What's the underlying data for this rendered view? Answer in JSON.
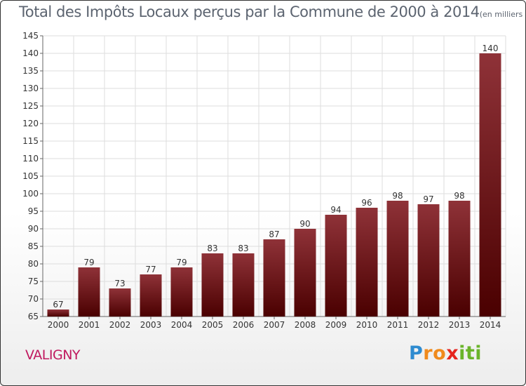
{
  "title": "Total des Impôts Locaux perçus par la Commune de 2000 à 2014",
  "unit": "(en milliers d'€)",
  "commune": "VALIGNY",
  "brand": {
    "letters": [
      "P",
      "r",
      "o",
      "x",
      "i",
      "t",
      "i"
    ],
    "colors": [
      "#2e8bd0",
      "#f08a1c",
      "#f08a1c",
      "#e5241d",
      "#6ab42a",
      "#6ab42a",
      "#6ab42a"
    ]
  },
  "colors": {
    "bar_top": "#8f3238",
    "bar_bottom": "#4a0000",
    "grid": "#dddddd",
    "text": "#333333"
  },
  "chart_data": {
    "type": "bar",
    "categories": [
      "2000",
      "2001",
      "2002",
      "2003",
      "2004",
      "2005",
      "2006",
      "2007",
      "2008",
      "2009",
      "2010",
      "2011",
      "2012",
      "2013",
      "2014"
    ],
    "values": [
      67,
      79,
      73,
      77,
      79,
      83,
      83,
      87,
      90,
      94,
      96,
      98,
      97,
      98,
      140
    ],
    "ylim": [
      65,
      145
    ],
    "yticks": [
      65,
      70,
      75,
      80,
      85,
      90,
      95,
      100,
      105,
      110,
      115,
      120,
      125,
      130,
      135,
      140,
      145
    ],
    "title": "Total des Impôts Locaux perçus par la Commune de 2000 à 2014",
    "xlabel": "",
    "ylabel": "",
    "grid": true
  }
}
